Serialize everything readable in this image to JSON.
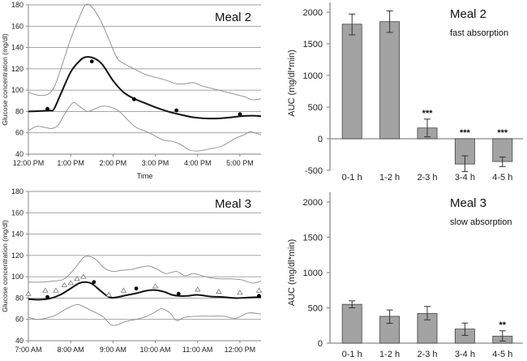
{
  "chart_data": [
    {
      "type": "line",
      "panel": "top-left",
      "title": "Meal 2",
      "xlabel": "Time",
      "ylabel": "Glucose concentration (mg/dl)",
      "ylim": [
        40,
        180
      ],
      "yticks": [
        40,
        60,
        80,
        100,
        120,
        140,
        160,
        180
      ],
      "xlim_hours": [
        12.0,
        17.5
      ],
      "xticks": [
        {
          "h": 12,
          "label": "12:00 PM"
        },
        {
          "h": 13,
          "label": "1:00 PM"
        },
        {
          "h": 14,
          "label": "2:00 PM"
        },
        {
          "h": 15,
          "label": "3:00 PM"
        },
        {
          "h": 16,
          "label": "4:00 PM"
        },
        {
          "h": 17,
          "label": "5:00 PM"
        }
      ],
      "grid": true,
      "series": [
        {
          "name": "upper",
          "style": "thin-gray",
          "x": [
            12.0,
            12.15,
            12.3,
            12.45,
            12.6,
            12.75,
            13.0,
            13.2,
            13.35,
            13.5,
            13.7,
            13.9,
            14.1,
            14.3,
            14.5,
            14.75,
            15.0,
            15.2,
            15.5,
            15.7,
            15.9,
            16.1,
            16.3,
            16.6,
            16.9,
            17.1,
            17.3,
            17.5
          ],
          "y": [
            98,
            96,
            95,
            96,
            102,
            118,
            148,
            168,
            180,
            178,
            166,
            148,
            130,
            124,
            120,
            115,
            112,
            110,
            106,
            106,
            107,
            104,
            102,
            99,
            96,
            94,
            91,
            92
          ]
        },
        {
          "name": "mean",
          "style": "thick-black",
          "x": [
            12.0,
            12.3,
            12.5,
            12.6,
            12.75,
            13.0,
            13.2,
            13.35,
            13.55,
            13.75,
            14.0,
            14.25,
            14.5,
            14.75,
            15.0,
            15.3,
            15.6,
            15.9,
            16.2,
            16.5,
            16.8,
            17.0,
            17.3,
            17.5
          ],
          "y": [
            80,
            80.5,
            81,
            82,
            95,
            117,
            127,
            131,
            130,
            124,
            109,
            98,
            92,
            88,
            84,
            80,
            77,
            74.5,
            73.5,
            73.5,
            74.5,
            75.5,
            76,
            75.5
          ]
        },
        {
          "name": "lower",
          "style": "thin-gray",
          "x": [
            12.0,
            12.2,
            12.4,
            12.55,
            12.7,
            12.85,
            13.05,
            13.2,
            13.4,
            13.6,
            13.75,
            13.95,
            14.15,
            14.35,
            14.55,
            14.8,
            15.0,
            15.2,
            15.4,
            15.6,
            15.8,
            16.0,
            16.3,
            16.6,
            16.9,
            17.1,
            17.25,
            17.5
          ],
          "y": [
            62,
            66,
            65,
            64,
            67,
            77,
            88,
            85,
            80,
            83,
            85,
            84,
            80,
            72,
            65,
            61,
            57,
            53,
            52,
            49,
            44,
            43,
            45,
            48,
            55,
            58,
            61,
            58
          ]
        }
      ],
      "points": {
        "name": "measured",
        "marker": "filled-circle",
        "x": [
          12.45,
          13.5,
          14.5,
          15.5,
          17.0
        ],
        "y": [
          82.5,
          127,
          91.5,
          81,
          77.5
        ]
      }
    },
    {
      "type": "line",
      "panel": "bottom-left",
      "title": "Meal 3",
      "xlabel": "",
      "ylabel": "Glucose concentration (mg/dl)",
      "ylim": [
        40,
        180
      ],
      "yticks": [
        40,
        60,
        80,
        100,
        120,
        140,
        160,
        180
      ],
      "xlim_hours": [
        7.0,
        12.5
      ],
      "xticks": [
        {
          "h": 7,
          "label": "7:00 AM"
        },
        {
          "h": 8,
          "label": "8:00 AM"
        },
        {
          "h": 9,
          "label": "9:00 AM"
        },
        {
          "h": 10,
          "label": "10:00 AM"
        },
        {
          "h": 11,
          "label": "11:00 AM"
        },
        {
          "h": 12,
          "label": "12:00 PM"
        }
      ],
      "grid": true,
      "series": [
        {
          "name": "upper",
          "style": "thin-gray",
          "x": [
            7.0,
            7.3,
            7.6,
            7.85,
            8.1,
            8.3,
            8.45,
            8.6,
            8.8,
            9.0,
            9.2,
            9.45,
            9.65,
            9.85,
            10.05,
            10.25,
            10.5,
            10.7,
            10.9,
            11.1,
            11.3,
            11.55,
            11.8,
            12.05,
            12.3,
            12.5
          ],
          "y": [
            95,
            95,
            96,
            98,
            108,
            118,
            119,
            116,
            108,
            105,
            106,
            107,
            109,
            110,
            107,
            103,
            105,
            101,
            103,
            101,
            99,
            98,
            98,
            97,
            94,
            96
          ]
        },
        {
          "name": "mean",
          "style": "thick-black",
          "x": [
            7.0,
            7.25,
            7.5,
            7.75,
            8.0,
            8.2,
            8.35,
            8.5,
            8.7,
            8.9,
            9.05,
            9.3,
            9.55,
            9.8,
            10.0,
            10.2,
            10.4,
            10.55,
            10.75,
            11.0,
            11.3,
            11.6,
            11.9,
            12.2,
            12.5
          ],
          "y": [
            79,
            78.5,
            79.5,
            83,
            89,
            94,
            95,
            93.5,
            87,
            81,
            80.5,
            82.5,
            84.5,
            87,
            87.5,
            86,
            83,
            82,
            82,
            83,
            81.5,
            81,
            80,
            80.5,
            81
          ]
        },
        {
          "name": "lower",
          "style": "thin-gray",
          "x": [
            7.0,
            7.2,
            7.4,
            7.65,
            7.9,
            8.15,
            8.3,
            8.5,
            8.75,
            8.95,
            9.1,
            9.3,
            9.55,
            9.8,
            10.0,
            10.15,
            10.35,
            10.5,
            10.7,
            11.0,
            11.3,
            11.6,
            11.9,
            12.2,
            12.5
          ],
          "y": [
            62,
            60,
            61,
            64,
            70,
            74,
            72,
            68,
            63,
            55,
            55,
            58,
            60,
            63,
            67,
            70,
            66,
            59,
            62,
            63,
            63,
            63,
            61,
            66,
            65
          ]
        }
      ],
      "points": {
        "name": "measured",
        "marker": "filled-circle",
        "x": [
          7.45,
          8.55,
          9.55,
          10.55,
          12.45
        ],
        "y": [
          81,
          95,
          89,
          84,
          82
        ]
      },
      "triangles": {
        "name": "reference",
        "marker": "open-triangle",
        "x": [
          7.0,
          7.4,
          7.65,
          7.85,
          8.0,
          8.15,
          8.3,
          8.9,
          9.25,
          10.0,
          11.0,
          11.5,
          12.0,
          12.45
        ],
        "y": [
          84,
          87,
          87,
          92,
          94,
          98,
          100,
          83,
          87,
          91,
          88,
          86,
          85,
          87
        ]
      }
    },
    {
      "type": "bar",
      "panel": "top-right",
      "title": "Meal 2",
      "subtitle": "fast absorption",
      "xlabel": "",
      "ylabel": "AUC (mg/dl*min)",
      "ylim": [
        -500,
        2000
      ],
      "yticks": [
        -500,
        0,
        500,
        1000,
        1500,
        2000
      ],
      "categories": [
        "0-1 h",
        "1-2 h",
        "2-3 h",
        "3-4 h",
        "4-5 h"
      ],
      "values": [
        1810,
        1850,
        170,
        -400,
        -360
      ],
      "err_low": [
        1640,
        1680,
        30,
        -520,
        -440
      ],
      "err_high": [
        1970,
        2020,
        310,
        -270,
        -290
      ],
      "annotations": [
        "",
        "",
        "***",
        "***",
        "***"
      ],
      "bar_color": "#a3a3a3"
    },
    {
      "type": "bar",
      "panel": "bottom-right",
      "title": "Meal 3",
      "subtitle": "slow absorption",
      "xlabel": "",
      "ylabel": "AUC (mg/dl*min)",
      "ylim": [
        0,
        2000
      ],
      "yticks": [
        0,
        500,
        1000,
        1500,
        2000
      ],
      "categories": [
        "0-1 h",
        "1-2 h",
        "2-3 h",
        "3-4 h",
        "4-5 h"
      ],
      "values": [
        550,
        380,
        420,
        200,
        100
      ],
      "err_low": [
        500,
        280,
        330,
        110,
        30
      ],
      "err_high": [
        600,
        470,
        520,
        285,
        175
      ],
      "annotations": [
        "",
        "",
        "",
        "",
        "**"
      ],
      "bar_color": "#a3a3a3"
    }
  ]
}
